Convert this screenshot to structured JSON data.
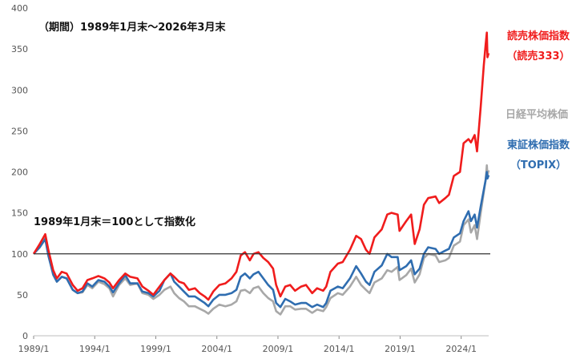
{
  "chart_data": {
    "type": "line",
    "title": "",
    "xlabel": "",
    "ylabel": "",
    "period_note": "（期間）1989年1月末〜2026年3月末",
    "base_note": "1989年1月末＝100として指数化",
    "x_tick_labels": [
      "1989/1",
      "1994/1",
      "1999/1",
      "2004/1",
      "2009/1",
      "2014/1",
      "2019/1",
      "2024/1"
    ],
    "y_tick_labels": [
      "0",
      "50",
      "100",
      "150",
      "200",
      "250",
      "300",
      "350",
      "400"
    ],
    "ylim": [
      0,
      400
    ],
    "xlim": [
      1989.0,
      2026.25
    ],
    "reference_line": 100,
    "grid": false,
    "legend_placement": "right",
    "series": [
      {
        "name": "読売株価指数",
        "legend_lines": [
          "読売株価指数",
          "（読売333）"
        ],
        "color": "#f01c1c",
        "values": [
          [
            1989.0,
            100
          ],
          [
            1989.5,
            112
          ],
          [
            1989.95,
            124
          ],
          [
            1990.2,
            105
          ],
          [
            1990.6,
            80
          ],
          [
            1990.9,
            70
          ],
          [
            1991.3,
            78
          ],
          [
            1991.7,
            76
          ],
          [
            1992.2,
            62
          ],
          [
            1992.6,
            55
          ],
          [
            1993.0,
            58
          ],
          [
            1993.4,
            68
          ],
          [
            1993.8,
            70
          ],
          [
            1994.3,
            73
          ],
          [
            1994.8,
            70
          ],
          [
            1995.2,
            65
          ],
          [
            1995.5,
            58
          ],
          [
            1996.0,
            68
          ],
          [
            1996.5,
            76
          ],
          [
            1996.9,
            72
          ],
          [
            1997.5,
            70
          ],
          [
            1997.9,
            60
          ],
          [
            1998.4,
            55
          ],
          [
            1998.8,
            50
          ],
          [
            1999.3,
            60
          ],
          [
            1999.7,
            68
          ],
          [
            2000.2,
            76
          ],
          [
            2000.5,
            72
          ],
          [
            2000.9,
            66
          ],
          [
            2001.3,
            64
          ],
          [
            2001.7,
            56
          ],
          [
            2002.2,
            58
          ],
          [
            2002.6,
            52
          ],
          [
            2003.0,
            48
          ],
          [
            2003.3,
            44
          ],
          [
            2003.7,
            54
          ],
          [
            2004.2,
            62
          ],
          [
            2004.7,
            64
          ],
          [
            2005.2,
            70
          ],
          [
            2005.6,
            78
          ],
          [
            2005.95,
            98
          ],
          [
            2006.3,
            102
          ],
          [
            2006.7,
            92
          ],
          [
            2007.0,
            100
          ],
          [
            2007.4,
            102
          ],
          [
            2007.8,
            95
          ],
          [
            2008.2,
            90
          ],
          [
            2008.6,
            82
          ],
          [
            2008.85,
            62
          ],
          [
            2009.2,
            48
          ],
          [
            2009.6,
            60
          ],
          [
            2010.0,
            62
          ],
          [
            2010.4,
            55
          ],
          [
            2010.9,
            60
          ],
          [
            2011.3,
            62
          ],
          [
            2011.8,
            52
          ],
          [
            2012.2,
            58
          ],
          [
            2012.7,
            55
          ],
          [
            2012.95,
            60
          ],
          [
            2013.3,
            78
          ],
          [
            2013.9,
            88
          ],
          [
            2014.3,
            90
          ],
          [
            2014.9,
            105
          ],
          [
            2015.4,
            122
          ],
          [
            2015.8,
            118
          ],
          [
            2016.2,
            105
          ],
          [
            2016.5,
            100
          ],
          [
            2016.9,
            120
          ],
          [
            2017.5,
            130
          ],
          [
            2017.95,
            148
          ],
          [
            2018.3,
            150
          ],
          [
            2018.8,
            148
          ],
          [
            2018.95,
            128
          ],
          [
            2019.5,
            140
          ],
          [
            2019.9,
            148
          ],
          [
            2020.2,
            112
          ],
          [
            2020.6,
            130
          ],
          [
            2020.95,
            160
          ],
          [
            2021.3,
            168
          ],
          [
            2021.9,
            170
          ],
          [
            2022.2,
            162
          ],
          [
            2022.7,
            168
          ],
          [
            2023.0,
            172
          ],
          [
            2023.4,
            195
          ],
          [
            2023.9,
            200
          ],
          [
            2024.2,
            235
          ],
          [
            2024.6,
            240
          ],
          [
            2024.8,
            236
          ],
          [
            2025.1,
            245
          ],
          [
            2025.3,
            225
          ],
          [
            2025.6,
            280
          ],
          [
            2025.85,
            330
          ],
          [
            2026.0,
            355
          ],
          [
            2026.1,
            370
          ],
          [
            2026.15,
            340
          ],
          [
            2026.25,
            345
          ]
        ]
      },
      {
        "name": "日経平均株価",
        "legend_lines": [
          "日経平均株価"
        ],
        "color": "#a8a8a8",
        "values": [
          [
            1989.0,
            100
          ],
          [
            1989.5,
            110
          ],
          [
            1989.95,
            122
          ],
          [
            1990.2,
            100
          ],
          [
            1990.6,
            74
          ],
          [
            1990.9,
            66
          ],
          [
            1991.3,
            72
          ],
          [
            1991.7,
            70
          ],
          [
            1992.2,
            56
          ],
          [
            1992.6,
            52
          ],
          [
            1993.0,
            53
          ],
          [
            1993.4,
            62
          ],
          [
            1993.8,
            58
          ],
          [
            1994.3,
            66
          ],
          [
            1994.8,
            63
          ],
          [
            1995.2,
            58
          ],
          [
            1995.5,
            48
          ],
          [
            1996.0,
            62
          ],
          [
            1996.5,
            70
          ],
          [
            1996.9,
            62
          ],
          [
            1997.5,
            64
          ],
          [
            1997.9,
            52
          ],
          [
            1998.4,
            50
          ],
          [
            1998.8,
            45
          ],
          [
            1999.3,
            50
          ],
          [
            1999.7,
            56
          ],
          [
            2000.2,
            60
          ],
          [
            2000.5,
            52
          ],
          [
            2000.9,
            46
          ],
          [
            2001.3,
            42
          ],
          [
            2001.7,
            36
          ],
          [
            2002.2,
            36
          ],
          [
            2002.6,
            33
          ],
          [
            2003.0,
            30
          ],
          [
            2003.3,
            27
          ],
          [
            2003.7,
            33
          ],
          [
            2004.2,
            38
          ],
          [
            2004.7,
            36
          ],
          [
            2005.2,
            38
          ],
          [
            2005.6,
            42
          ],
          [
            2005.95,
            55
          ],
          [
            2006.3,
            56
          ],
          [
            2006.7,
            52
          ],
          [
            2007.0,
            58
          ],
          [
            2007.4,
            60
          ],
          [
            2007.8,
            52
          ],
          [
            2008.2,
            46
          ],
          [
            2008.6,
            42
          ],
          [
            2008.85,
            30
          ],
          [
            2009.2,
            26
          ],
          [
            2009.6,
            36
          ],
          [
            2010.0,
            36
          ],
          [
            2010.4,
            32
          ],
          [
            2010.9,
            33
          ],
          [
            2011.3,
            33
          ],
          [
            2011.8,
            28
          ],
          [
            2012.2,
            32
          ],
          [
            2012.7,
            30
          ],
          [
            2012.95,
            35
          ],
          [
            2013.3,
            46
          ],
          [
            2013.9,
            52
          ],
          [
            2014.3,
            50
          ],
          [
            2014.9,
            60
          ],
          [
            2015.4,
            72
          ],
          [
            2015.8,
            62
          ],
          [
            2016.2,
            56
          ],
          [
            2016.5,
            52
          ],
          [
            2016.9,
            65
          ],
          [
            2017.5,
            70
          ],
          [
            2017.95,
            80
          ],
          [
            2018.3,
            78
          ],
          [
            2018.8,
            84
          ],
          [
            2018.95,
            68
          ],
          [
            2019.5,
            74
          ],
          [
            2019.9,
            82
          ],
          [
            2020.2,
            65
          ],
          [
            2020.6,
            75
          ],
          [
            2020.95,
            95
          ],
          [
            2021.3,
            100
          ],
          [
            2021.9,
            98
          ],
          [
            2022.2,
            90
          ],
          [
            2022.7,
            92
          ],
          [
            2023.0,
            95
          ],
          [
            2023.4,
            110
          ],
          [
            2023.9,
            115
          ],
          [
            2024.2,
            135
          ],
          [
            2024.6,
            142
          ],
          [
            2024.8,
            126
          ],
          [
            2025.1,
            135
          ],
          [
            2025.3,
            118
          ],
          [
            2025.6,
            150
          ],
          [
            2025.85,
            175
          ],
          [
            2026.0,
            190
          ],
          [
            2026.1,
            208
          ],
          [
            2026.15,
            196
          ],
          [
            2026.25,
            202
          ]
        ]
      },
      {
        "name": "東証株価指数",
        "legend_lines": [
          "東証株価指数",
          "（TOPIX）"
        ],
        "color": "#2f6db0",
        "values": [
          [
            1989.0,
            100
          ],
          [
            1989.5,
            108
          ],
          [
            1989.95,
            118
          ],
          [
            1990.2,
            98
          ],
          [
            1990.6,
            75
          ],
          [
            1990.9,
            66
          ],
          [
            1991.3,
            72
          ],
          [
            1991.7,
            70
          ],
          [
            1992.2,
            56
          ],
          [
            1992.6,
            52
          ],
          [
            1993.0,
            54
          ],
          [
            1993.4,
            64
          ],
          [
            1993.8,
            60
          ],
          [
            1994.3,
            68
          ],
          [
            1994.8,
            66
          ],
          [
            1995.2,
            60
          ],
          [
            1995.5,
            53
          ],
          [
            1996.0,
            64
          ],
          [
            1996.5,
            74
          ],
          [
            1996.9,
            64
          ],
          [
            1997.5,
            64
          ],
          [
            1997.9,
            54
          ],
          [
            1998.4,
            52
          ],
          [
            1998.8,
            48
          ],
          [
            1999.3,
            55
          ],
          [
            1999.7,
            68
          ],
          [
            2000.2,
            76
          ],
          [
            2000.5,
            66
          ],
          [
            2000.9,
            60
          ],
          [
            2001.3,
            54
          ],
          [
            2001.7,
            48
          ],
          [
            2002.2,
            48
          ],
          [
            2002.6,
            44
          ],
          [
            2003.0,
            40
          ],
          [
            2003.3,
            36
          ],
          [
            2003.7,
            44
          ],
          [
            2004.2,
            50
          ],
          [
            2004.7,
            50
          ],
          [
            2005.2,
            52
          ],
          [
            2005.6,
            56
          ],
          [
            2005.95,
            72
          ],
          [
            2006.3,
            76
          ],
          [
            2006.7,
            70
          ],
          [
            2007.0,
            75
          ],
          [
            2007.4,
            78
          ],
          [
            2007.8,
            70
          ],
          [
            2008.2,
            62
          ],
          [
            2008.6,
            56
          ],
          [
            2008.85,
            40
          ],
          [
            2009.2,
            35
          ],
          [
            2009.6,
            45
          ],
          [
            2010.0,
            42
          ],
          [
            2010.4,
            38
          ],
          [
            2010.9,
            40
          ],
          [
            2011.3,
            40
          ],
          [
            2011.8,
            35
          ],
          [
            2012.2,
            38
          ],
          [
            2012.7,
            35
          ],
          [
            2012.95,
            40
          ],
          [
            2013.3,
            55
          ],
          [
            2013.9,
            60
          ],
          [
            2014.3,
            58
          ],
          [
            2014.9,
            70
          ],
          [
            2015.4,
            85
          ],
          [
            2015.8,
            76
          ],
          [
            2016.2,
            66
          ],
          [
            2016.5,
            62
          ],
          [
            2016.9,
            78
          ],
          [
            2017.5,
            86
          ],
          [
            2017.95,
            100
          ],
          [
            2018.3,
            96
          ],
          [
            2018.8,
            96
          ],
          [
            2018.95,
            80
          ],
          [
            2019.5,
            85
          ],
          [
            2019.9,
            92
          ],
          [
            2020.2,
            75
          ],
          [
            2020.6,
            82
          ],
          [
            2020.95,
            100
          ],
          [
            2021.3,
            108
          ],
          [
            2021.9,
            106
          ],
          [
            2022.2,
            100
          ],
          [
            2022.7,
            104
          ],
          [
            2023.0,
            106
          ],
          [
            2023.4,
            120
          ],
          [
            2023.9,
            125
          ],
          [
            2024.2,
            140
          ],
          [
            2024.6,
            152
          ],
          [
            2024.8,
            140
          ],
          [
            2025.1,
            148
          ],
          [
            2025.3,
            132
          ],
          [
            2025.6,
            158
          ],
          [
            2025.85,
            178
          ],
          [
            2026.0,
            190
          ],
          [
            2026.1,
            200
          ],
          [
            2026.15,
            192
          ],
          [
            2026.25,
            196
          ]
        ]
      }
    ]
  }
}
